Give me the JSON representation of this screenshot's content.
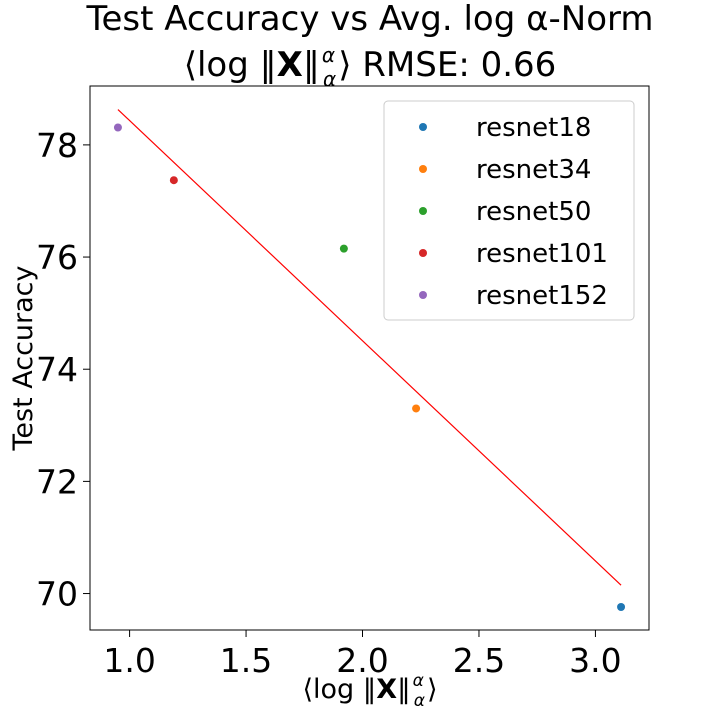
{
  "chart_data": {
    "type": "scatter",
    "title_line1": "Test Accuracy vs Avg. log α-Norm",
    "title_line2": "⟨log ‖X‖αα⟩ RMSE: 0.66",
    "xlabel": "⟨log ‖X‖αα⟩",
    "ylabel": "Test Accuracy",
    "xlim": [
      0.83,
      3.23
    ],
    "ylim": [
      69.35,
      79.05
    ],
    "xticks": [
      1.0,
      1.5,
      2.0,
      2.5,
      3.0
    ],
    "xtick_labels": [
      "1.0",
      "1.5",
      "2.0",
      "2.5",
      "3.0"
    ],
    "yticks": [
      70,
      72,
      74,
      76,
      78
    ],
    "ytick_labels": [
      "70",
      "72",
      "74",
      "76",
      "78"
    ],
    "grid": false,
    "legend_position": "top-right",
    "series": [
      {
        "name": "resnet18",
        "color": "#1f77b4",
        "x": [
          3.11
        ],
        "y": [
          69.76
        ]
      },
      {
        "name": "resnet34",
        "color": "#ff7f0e",
        "x": [
          2.23
        ],
        "y": [
          73.3
        ]
      },
      {
        "name": "resnet50",
        "color": "#2ca02c",
        "x": [
          1.92
        ],
        "y": [
          76.15
        ]
      },
      {
        "name": "resnet101",
        "color": "#d62728",
        "x": [
          1.19
        ],
        "y": [
          77.37
        ]
      },
      {
        "name": "resnet152",
        "color": "#9467bd",
        "x": [
          0.95
        ],
        "y": [
          78.31
        ]
      }
    ],
    "fit_line": {
      "color": "#ff0000",
      "x": [
        0.95,
        3.11
      ],
      "y": [
        78.63,
        70.15
      ]
    }
  }
}
